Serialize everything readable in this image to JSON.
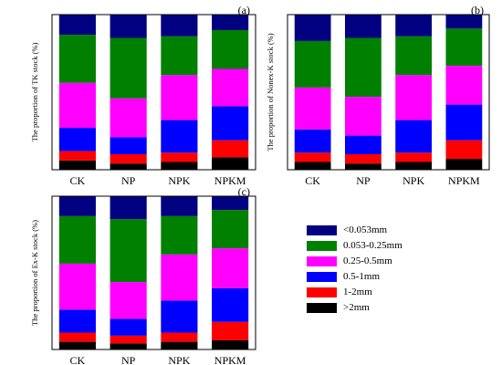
{
  "chart_data": [
    {
      "type": "stacked-bar",
      "panel_label": "(a)",
      "ylabel": "The proportion of  TK stock (%)",
      "categories": [
        "CK",
        "NP",
        "NPK",
        "NPKM"
      ],
      "ylim": [
        0,
        100
      ],
      "series": [
        {
          "name": ">2mm",
          "values": [
            6,
            4,
            5,
            8
          ]
        },
        {
          "name": "1-2mm",
          "values": [
            6,
            6,
            6,
            11
          ]
        },
        {
          "name": "0.5-1mm",
          "values": [
            15,
            11,
            21,
            22
          ]
        },
        {
          "name": "0.25-0.5mm",
          "values": [
            29,
            25,
            29,
            24
          ]
        },
        {
          "name": "0.053-0.25mm",
          "values": [
            31,
            39,
            25,
            25
          ]
        },
        {
          "name": "<0.053mm",
          "values": [
            13,
            15,
            14,
            10
          ]
        }
      ]
    },
    {
      "type": "stacked-bar",
      "panel_label": "(b)",
      "ylabel": "The proportion of  Nonex-K stock (%)",
      "categories": [
        "CK",
        "NP",
        "NPK",
        "NPKM"
      ],
      "ylim": [
        0,
        100
      ],
      "series": [
        {
          "name": ">2mm",
          "values": [
            5,
            4,
            5,
            7
          ]
        },
        {
          "name": "1-2mm",
          "values": [
            6,
            6,
            6,
            12
          ]
        },
        {
          "name": "0.5-1mm",
          "values": [
            15,
            12,
            21,
            23
          ]
        },
        {
          "name": "0.25-0.5mm",
          "values": [
            27,
            25,
            29,
            25
          ]
        },
        {
          "name": "0.053-0.25mm",
          "values": [
            30,
            38,
            25,
            24
          ]
        },
        {
          "name": "<0.053mm",
          "values": [
            17,
            15,
            14,
            9
          ]
        }
      ]
    },
    {
      "type": "stacked-bar",
      "panel_label": "(c)",
      "ylabel": "The proportion of  Ex-K stock (%)",
      "categories": [
        "CK",
        "NP",
        "NPK",
        "NPKM"
      ],
      "ylim": [
        0,
        100
      ],
      "series": [
        {
          "name": ">2mm",
          "values": [
            5,
            4,
            5,
            6
          ]
        },
        {
          "name": "1-2mm",
          "values": [
            6,
            5,
            6,
            12
          ]
        },
        {
          "name": "0.5-1mm",
          "values": [
            15,
            11,
            21,
            22
          ]
        },
        {
          "name": "0.25-0.5mm",
          "values": [
            30,
            24,
            30,
            26
          ]
        },
        {
          "name": "0.053-0.25mm",
          "values": [
            31,
            41,
            25,
            25
          ]
        },
        {
          "name": "<0.053mm",
          "values": [
            13,
            15,
            13,
            9
          ]
        }
      ]
    }
  ],
  "colors": {
    ">2mm": "#000000",
    "1-2mm": "#ff0000",
    "0.5-1mm": "#0000ff",
    "0.25-0.5mm": "#ff00ff",
    "0.053-0.25mm": "#008000",
    "<0.053mm": "#000080"
  },
  "legend": {
    "position": "bottom-right",
    "items": [
      "<0.053mm",
      "0.053-0.25mm",
      "0.25-0.5mm",
      "0.5-1mm",
      "1-2mm",
      ">2mm"
    ]
  }
}
